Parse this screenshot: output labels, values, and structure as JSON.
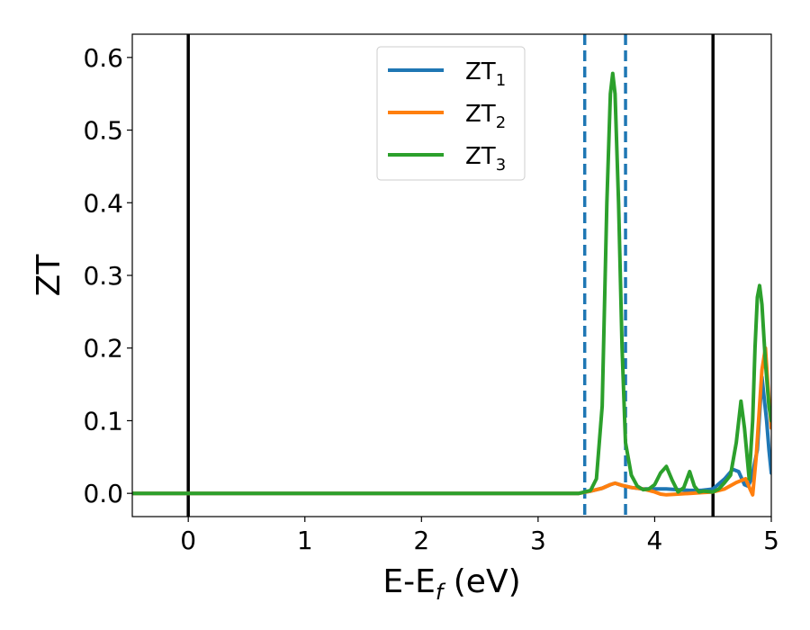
{
  "chart_data": {
    "type": "line",
    "title": "",
    "xlabel_main": "E-E",
    "xlabel_sub": "f",
    "xlabel_suffix": " (eV)",
    "ylabel": "ZT",
    "xlim": [
      -0.48,
      5.0
    ],
    "ylim": [
      -0.032,
      0.632
    ],
    "xticks": [
      0,
      1,
      2,
      3,
      4,
      5
    ],
    "xtick_labels": [
      "0",
      "1",
      "2",
      "3",
      "4",
      "5"
    ],
    "yticks": [
      0.0,
      0.1,
      0.2,
      0.3,
      0.4,
      0.5,
      0.6
    ],
    "ytick_labels": [
      "0.0",
      "0.1",
      "0.2",
      "0.3",
      "0.4",
      "0.5",
      "0.6"
    ],
    "grid": false,
    "legend_position": "top-center",
    "vlines": [
      {
        "x": 0.0,
        "style": "solid",
        "color": "#000000"
      },
      {
        "x": 4.5,
        "style": "solid",
        "color": "#000000"
      },
      {
        "x": 3.4,
        "style": "dashed",
        "color": "#1f77b4"
      },
      {
        "x": 3.75,
        "style": "dashed",
        "color": "#1f77b4"
      }
    ],
    "series": [
      {
        "name": "ZT",
        "name_sub": "1",
        "color": "#1f77b4",
        "x": [
          -0.48,
          3.35,
          3.45,
          3.55,
          3.62,
          3.66,
          3.72,
          3.8,
          3.9,
          4.0,
          4.1,
          4.2,
          4.3,
          4.4,
          4.5,
          4.6,
          4.67,
          4.72,
          4.77,
          4.8,
          4.83,
          4.88,
          4.92,
          4.96,
          4.98,
          5.0
        ],
        "y": [
          0,
          0,
          0.003,
          0.007,
          0.012,
          0.014,
          0.011,
          0.008,
          0.006,
          0.006,
          0.006,
          0.005,
          0.004,
          0.004,
          0.006,
          0.02,
          0.033,
          0.03,
          0.012,
          0.01,
          0.02,
          0.06,
          0.16,
          0.1,
          0.06,
          0.028
        ]
      },
      {
        "name": "ZT",
        "name_sub": "2",
        "color": "#ff7f0e",
        "x": [
          -0.48,
          3.35,
          3.45,
          3.55,
          3.62,
          3.66,
          3.72,
          3.8,
          3.9,
          4.0,
          4.05,
          4.1,
          4.2,
          4.3,
          4.4,
          4.5,
          4.6,
          4.7,
          4.78,
          4.82,
          4.84,
          4.87,
          4.92,
          4.95,
          4.97,
          5.0
        ],
        "y": [
          0,
          0,
          0.003,
          0.007,
          0.012,
          0.014,
          0.011,
          0.008,
          0.006,
          0.002,
          -0.001,
          -0.002,
          -0.001,
          0.0,
          0.001,
          0.002,
          0.006,
          0.015,
          0.02,
          0.005,
          -0.002,
          0.05,
          0.17,
          0.2,
          0.15,
          0.09
        ]
      },
      {
        "name": "ZT",
        "name_sub": "3",
        "color": "#2ca02c",
        "x": [
          -0.48,
          3.35,
          3.45,
          3.5,
          3.55,
          3.59,
          3.62,
          3.64,
          3.66,
          3.69,
          3.72,
          3.75,
          3.8,
          3.85,
          3.9,
          3.95,
          4.0,
          4.05,
          4.1,
          4.15,
          4.2,
          4.25,
          4.3,
          4.34,
          4.38,
          4.42,
          4.5,
          4.55,
          4.6,
          4.65,
          4.7,
          4.74,
          4.77,
          4.81,
          4.84,
          4.86,
          4.88,
          4.9,
          4.92,
          4.95,
          4.98,
          5.0
        ],
        "y": [
          0,
          0,
          0.004,
          0.02,
          0.12,
          0.4,
          0.55,
          0.578,
          0.55,
          0.4,
          0.2,
          0.07,
          0.025,
          0.01,
          0.005,
          0.006,
          0.012,
          0.028,
          0.037,
          0.018,
          0.002,
          0.008,
          0.03,
          0.01,
          0.002,
          0.003,
          0.002,
          0.006,
          0.015,
          0.025,
          0.07,
          0.127,
          0.09,
          0.02,
          0.1,
          0.2,
          0.27,
          0.286,
          0.26,
          0.18,
          0.12,
          0.1
        ]
      }
    ]
  }
}
